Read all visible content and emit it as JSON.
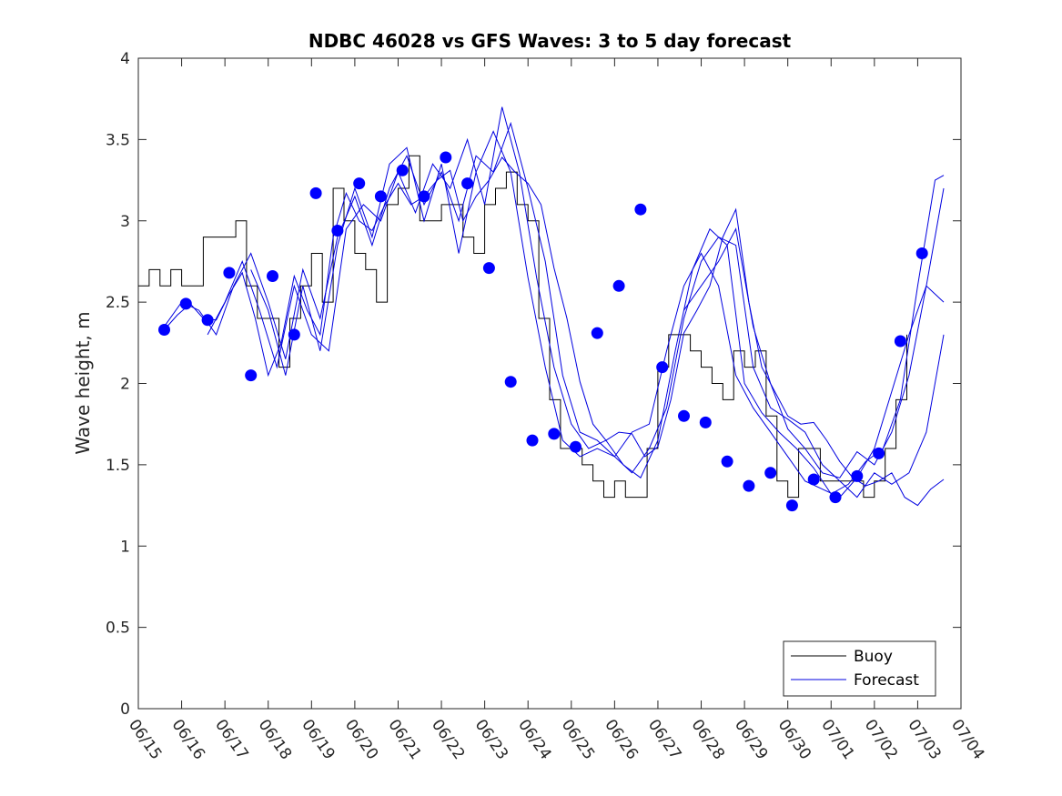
{
  "chart_data": {
    "type": "line",
    "title": "NDBC 46028 vs GFS Waves: 3 to 5 day forecast",
    "xlabel": "",
    "ylabel": "Wave height, m",
    "xlim": [
      "06/15",
      "07/04"
    ],
    "ylim": [
      0,
      4
    ],
    "x_ticks": [
      "06/15",
      "06/16",
      "06/17",
      "06/18",
      "06/19",
      "06/20",
      "06/21",
      "06/22",
      "06/23",
      "06/24",
      "06/25",
      "06/26",
      "06/27",
      "06/28",
      "06/29",
      "06/30",
      "07/01",
      "07/02",
      "07/03",
      "07/04"
    ],
    "y_ticks": [
      "0",
      "0.5",
      "1",
      "1.5",
      "2",
      "2.5",
      "3",
      "3.5",
      "4"
    ],
    "grid": false,
    "legend_position": "bottom-right",
    "colors": {
      "buoy": "#000000",
      "forecast": "#0000e0",
      "markers": "#0000ff"
    },
    "series": [
      {
        "name": "Buoy",
        "x": [
          0,
          0.25,
          0.5,
          0.75,
          1,
          1.25,
          1.5,
          1.75,
          2,
          2.25,
          2.5,
          2.75,
          3,
          3.25,
          3.5,
          3.75,
          4,
          4.25,
          4.5,
          4.75,
          5,
          5.25,
          5.5,
          5.75,
          6,
          6.25,
          6.5,
          6.75,
          7,
          7.25,
          7.5,
          7.75,
          8,
          8.25,
          8.5,
          8.75,
          9,
          9.25,
          9.5,
          9.75,
          10,
          10.25,
          10.5,
          10.75,
          11,
          11.25,
          11.5,
          11.75,
          12,
          12.25,
          12.5,
          12.75,
          13,
          13.25,
          13.5,
          13.75,
          14,
          14.25,
          14.5,
          14.75,
          15,
          15.25,
          15.5,
          15.75,
          16,
          16.25,
          16.5,
          16.75,
          17,
          17.25,
          17.5,
          17.75
        ],
        "values": [
          2.6,
          2.7,
          2.6,
          2.7,
          2.6,
          2.6,
          2.9,
          2.9,
          2.9,
          3.0,
          2.6,
          2.4,
          2.4,
          2.1,
          2.4,
          2.6,
          2.8,
          2.5,
          3.2,
          3.0,
          2.8,
          2.7,
          2.5,
          3.1,
          3.2,
          3.4,
          3.0,
          3.0,
          3.1,
          3.1,
          2.9,
          2.8,
          3.1,
          3.2,
          3.3,
          3.1,
          3.0,
          2.4,
          1.9,
          1.6,
          1.6,
          1.5,
          1.4,
          1.3,
          1.4,
          1.3,
          1.3,
          1.6,
          2.1,
          2.3,
          2.3,
          2.2,
          2.1,
          2.0,
          1.9,
          2.2,
          2.1,
          2.2,
          1.8,
          1.4,
          1.3,
          1.6,
          1.6,
          1.4,
          1.4,
          1.4,
          1.4,
          1.3,
          1.4,
          1.6,
          1.9,
          2.3
        ]
      },
      {
        "name": "Forecast",
        "runs": [
          {
            "x": [
              0.6,
              0.9,
              1.2,
              1.5,
              1.8,
              2.1,
              2.4,
              2.7,
              3.0,
              3.3,
              3.6,
              3.9,
              4.2,
              4.5,
              4.8,
              5.1,
              5.4,
              5.7,
              6.0,
              6.3,
              6.6,
              6.9,
              7.2,
              7.5,
              7.8,
              8.1,
              8.4,
              8.7,
              9.0,
              9.3,
              9.6,
              9.9,
              10.2,
              10.5,
              10.8,
              11.1,
              11.4,
              11.7,
              12.0,
              12.3,
              12.6,
              12.9,
              13.2,
              13.5,
              13.8,
              14.1,
              14.4,
              14.7,
              15.0,
              15.3,
              15.6,
              15.9,
              16.2,
              16.5,
              16.8,
              17.1,
              17.4,
              17.7,
              18.0,
              18.3,
              18.6
            ],
            "values": [
              2.33,
              2.42,
              2.49,
              2.4,
              2.39,
              2.55,
              2.68,
              2.4,
              2.05,
              2.25,
              2.66,
              2.45,
              2.3,
              2.9,
              3.17,
              3.0,
              2.94,
              3.1,
              3.23,
              3.1,
              3.15,
              3.25,
              3.31,
              3.0,
              3.15,
              3.25,
              3.39,
              3.3,
              3.23,
              3.1,
              2.71,
              2.4,
              2.01,
              1.75,
              1.65,
              1.7,
              1.69,
              1.55,
              1.61,
              1.9,
              2.31,
              2.45,
              2.6,
              2.9,
              3.07,
              2.5,
              2.1,
              1.95,
              1.8,
              1.75,
              1.76,
              1.65,
              1.52,
              1.42,
              1.37,
              1.4,
              1.45,
              1.3,
              1.25,
              1.35,
              1.41
            ]
          },
          {
            "x": [
              0.6,
              1.0,
              1.4,
              1.8,
              2.2,
              2.6,
              3.0,
              3.4,
              3.8,
              4.2,
              4.6,
              5.0,
              5.4,
              5.8,
              6.2,
              6.6,
              7.0,
              7.4,
              7.8,
              8.2,
              8.6,
              9.0,
              9.4,
              9.8,
              10.2,
              10.6,
              11.0,
              11.4,
              11.8,
              12.2,
              12.6,
              13.0,
              13.4,
              13.8,
              14.2,
              14.6,
              15.0,
              15.4,
              15.8,
              16.2,
              16.6,
              17.0,
              17.4,
              17.8,
              18.2,
              18.6
            ],
            "values": [
              2.35,
              2.5,
              2.45,
              2.3,
              2.6,
              2.8,
              2.5,
              2.15,
              2.7,
              2.4,
              2.9,
              3.15,
              2.85,
              3.2,
              3.4,
              3.1,
              3.3,
              3.0,
              3.4,
              3.3,
              3.6,
              3.2,
              2.75,
              2.05,
              1.7,
              1.65,
              1.55,
              1.45,
              1.6,
              1.85,
              2.4,
              2.75,
              2.9,
              2.85,
              2.1,
              1.85,
              1.78,
              1.7,
              1.5,
              1.4,
              1.3,
              1.45,
              1.38,
              1.45,
              1.7,
              2.3
            ]
          },
          {
            "x": [
              1.6,
              2.0,
              2.4,
              2.8,
              3.2,
              3.6,
              4.0,
              4.4,
              4.8,
              5.2,
              5.6,
              6.0,
              6.4,
              6.8,
              7.2,
              7.6,
              8.0,
              8.4,
              8.8,
              9.2,
              9.6,
              10.0,
              10.4,
              10.8,
              11.2,
              11.6,
              12.0,
              12.4,
              12.8,
              13.2,
              13.6,
              14.0,
              14.4,
              14.8,
              15.2,
              15.6,
              16.0,
              16.4,
              16.8,
              17.2,
              17.6,
              18.0,
              18.4,
              18.6
            ],
            "values": [
              2.3,
              2.5,
              2.75,
              2.45,
              2.1,
              2.6,
              2.3,
              2.2,
              2.95,
              3.1,
              3.0,
              3.3,
              3.05,
              3.35,
              3.2,
              3.5,
              3.1,
              3.7,
              3.3,
              2.65,
              2.1,
              1.75,
              1.6,
              1.65,
              1.5,
              1.42,
              1.65,
              2.2,
              2.7,
              2.95,
              2.85,
              2.0,
              1.82,
              1.7,
              1.6,
              1.48,
              1.32,
              1.38,
              1.52,
              1.6,
              1.9,
              2.6,
              3.25,
              3.28
            ]
          },
          {
            "x": [
              2.6,
              3.0,
              3.4,
              3.8,
              4.2,
              4.6,
              5.0,
              5.4,
              5.8,
              6.2,
              6.6,
              7.0,
              7.4,
              7.8,
              8.2,
              8.6,
              9.0,
              9.4,
              9.8,
              10.2,
              10.6,
              11.0,
              11.4,
              11.8,
              12.2,
              12.6,
              13.0,
              13.4,
              13.8,
              14.2,
              14.6,
              15.0,
              15.4,
              15.8,
              16.2,
              16.6,
              17.0,
              17.4,
              17.8,
              18.2,
              18.6
            ],
            "values": [
              2.7,
              2.45,
              2.05,
              2.6,
              2.2,
              2.85,
              3.2,
              2.9,
              3.35,
              3.45,
              3.0,
              3.35,
              2.8,
              3.3,
              3.55,
              3.3,
              2.65,
              2.1,
              1.65,
              1.55,
              1.6,
              1.55,
              1.7,
              1.75,
              2.2,
              2.6,
              2.8,
              2.6,
              2.05,
              1.85,
              1.7,
              1.55,
              1.4,
              1.35,
              1.3,
              1.42,
              1.6,
              1.95,
              2.3,
              2.6,
              2.5
            ]
          },
          {
            "x": [
              12.6,
              13.0,
              13.4,
              13.8,
              14.2,
              14.6,
              15.0,
              15.4,
              15.8,
              16.2,
              16.6,
              17.0,
              17.4,
              17.8,
              18.2,
              18.6
            ],
            "values": [
              2.45,
              2.6,
              2.75,
              2.95,
              2.35,
              2.0,
              1.72,
              1.6,
              1.45,
              1.42,
              1.58,
              1.5,
              1.7,
              2.05,
              2.6,
              3.2
            ]
          }
        ]
      },
      {
        "name": "",
        "kind": "markers",
        "x": [
          0.6,
          1.1,
          1.6,
          2.1,
          2.6,
          3.1,
          3.6,
          4.1,
          4.6,
          5.1,
          5.6,
          6.1,
          6.6,
          7.1,
          7.6,
          8.1,
          8.6,
          9.1,
          9.6,
          10.1,
          10.6,
          11.1,
          11.6,
          12.1,
          12.6,
          13.1,
          13.6,
          14.1,
          14.6,
          15.1,
          15.6,
          16.1,
          16.6,
          17.1,
          17.6,
          18.1
        ],
        "values": [
          2.33,
          2.49,
          2.39,
          2.68,
          2.05,
          2.66,
          2.3,
          3.17,
          2.94,
          3.23,
          3.15,
          3.31,
          3.15,
          3.39,
          3.23,
          2.71,
          2.01,
          1.65,
          1.69,
          1.61,
          2.31,
          2.6,
          3.07,
          2.1,
          1.8,
          1.76,
          1.52,
          1.37,
          1.45,
          1.25,
          1.41,
          1.3,
          1.43,
          1.57,
          2.26,
          2.8
        ]
      }
    ]
  },
  "legend": {
    "items": [
      {
        "label": "Buoy",
        "color": "#000000"
      },
      {
        "label": "Forecast",
        "color": "#0000e0"
      }
    ]
  }
}
